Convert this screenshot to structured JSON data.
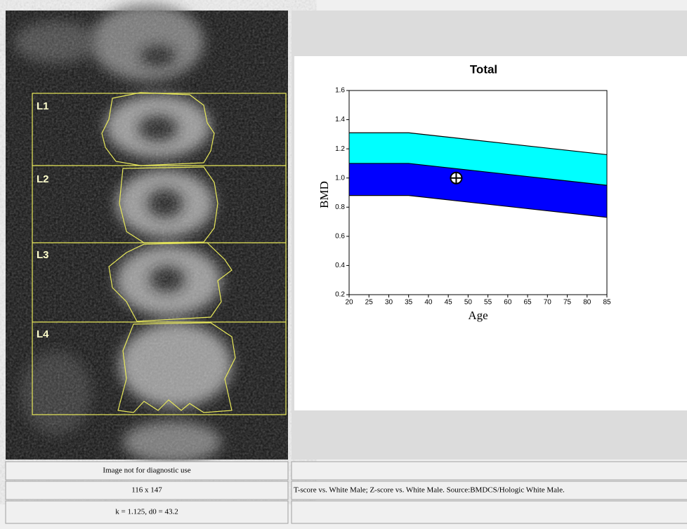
{
  "chart_data": {
    "type": "area",
    "title": "Total",
    "x_label": "Age",
    "y_label": "BMD",
    "x": [
      20,
      35,
      85
    ],
    "series": [
      {
        "color": "#00ffff",
        "values": [
          1.31,
          1.31,
          1.16
        ]
      },
      {
        "color": "#0000ff",
        "values": [
          1.1,
          1.1,
          0.95
        ]
      },
      {
        "color": "#000000",
        "values": [
          0.88,
          0.88,
          0.73
        ]
      }
    ],
    "marker": {
      "x": 47,
      "y": 1.0
    },
    "xlim": [
      20,
      85
    ],
    "xticks": [
      20,
      25,
      30,
      35,
      40,
      45,
      50,
      55,
      60,
      65,
      70,
      75,
      80,
      85
    ],
    "ylim": [
      0.2,
      1.6
    ],
    "yticks": [
      0.2,
      0.4,
      0.6,
      0.8,
      {
        "value": 1,
        "label": "1.0"
      },
      1.2,
      1.4,
      1.6
    ]
  },
  "image": {
    "regions": [
      "L1",
      "L2",
      "L3",
      "L4"
    ]
  },
  "table": {
    "rows": [
      [
        "Image not for diagnostic use"
      ],
      [
        "116 x 147",
        "T-score vs. White Male; Z-score vs. White Male. Source:BMDCS/Hologic White Male."
      ],
      [
        "k = 1.125, d0 = 43.2"
      ]
    ]
  }
}
